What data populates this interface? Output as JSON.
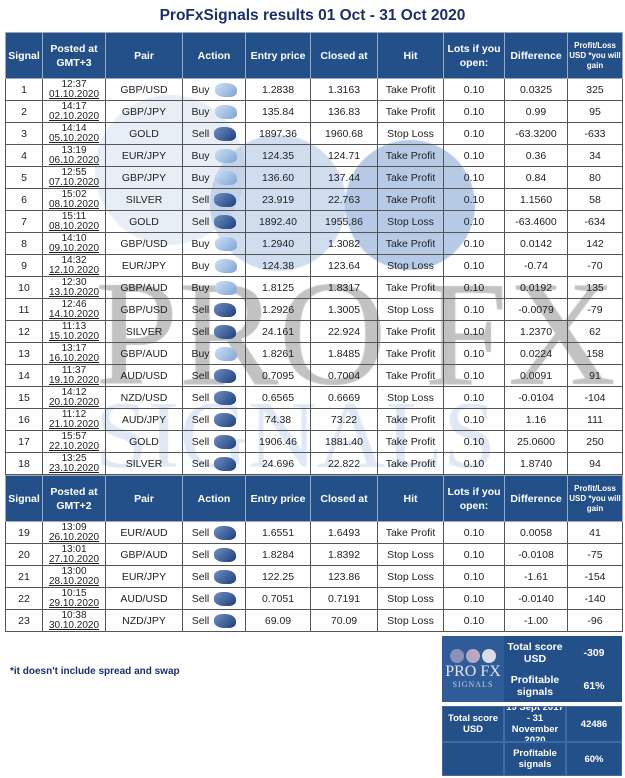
{
  "title": "ProFxSignals results 01 Oct - 31 Oct 2020",
  "headers1": [
    "Signal",
    "Posted at GMT+3",
    "Pair",
    "Action",
    "Entry price",
    "Closed at",
    "Hit",
    "Lots if you open:",
    "Difference",
    "Profit/Loss USD *you will gain"
  ],
  "headers2": [
    "Signal",
    "Posted at GMT+2",
    "Pair",
    "Action",
    "Entry price",
    "Closed at",
    "Hit",
    "Lots if you open:",
    "Difference",
    "Profit/Loss USD *you will gain"
  ],
  "rows1": [
    [
      "1",
      "12:37",
      "01.10.2020",
      "GBP/USD",
      "Buy",
      "1.2838",
      "1.3163",
      "Take Profit",
      "0.10",
      "0.0325",
      "325"
    ],
    [
      "2",
      "14:17",
      "02.10.2020",
      "GBP/JPY",
      "Buy",
      "135.84",
      "136.83",
      "Take Profit",
      "0.10",
      "0.99",
      "95"
    ],
    [
      "3",
      "14:14",
      "05.10.2020",
      "GOLD",
      "Sell",
      "1897.36",
      "1960.68",
      "Stop Loss",
      "0.10",
      "-63.3200",
      "-633"
    ],
    [
      "4",
      "13:19",
      "06.10.2020",
      "EUR/JPY",
      "Buy",
      "124.35",
      "124.71",
      "Take Profit",
      "0.10",
      "0.36",
      "34"
    ],
    [
      "5",
      "12:55",
      "07.10.2020",
      "GBP/JPY",
      "Buy",
      "136.60",
      "137.44",
      "Take Profit",
      "0.10",
      "0.84",
      "80"
    ],
    [
      "6",
      "15:02",
      "08.10.2020",
      "SILVER",
      "Sell",
      "23.919",
      "22.763",
      "Take Profit",
      "0.10",
      "1.1560",
      "58"
    ],
    [
      "7",
      "15:11",
      "08.10.2020",
      "GOLD",
      "Sell",
      "1892.40",
      "1955.86",
      "Stop Loss",
      "0.10",
      "-63.4600",
      "-634"
    ],
    [
      "8",
      "14:10",
      "09.10.2020",
      "GBP/USD",
      "Buy",
      "1.2940",
      "1.3082",
      "Take Profit",
      "0.10",
      "0.0142",
      "142"
    ],
    [
      "9",
      "14:32",
      "12.10.2020",
      "EUR/JPY",
      "Buy",
      "124.38",
      "123.64",
      "Stop Loss",
      "0.10",
      "-0.74",
      "-70"
    ],
    [
      "10",
      "12:30",
      "13.10.2020",
      "GBP/AUD",
      "Buy",
      "1.8125",
      "1.8317",
      "Take Profit",
      "0.10",
      "0.0192",
      "135"
    ],
    [
      "11",
      "12:46",
      "14.10.2020",
      "GBP/USD",
      "Sell",
      "1.2926",
      "1.3005",
      "Stop Loss",
      "0.10",
      "-0.0079",
      "-79"
    ],
    [
      "12",
      "11:13",
      "15.10.2020",
      "SILVER",
      "Sell",
      "24.161",
      "22.924",
      "Take Profit",
      "0.10",
      "1.2370",
      "62"
    ],
    [
      "13",
      "13:17",
      "16.10.2020",
      "GBP/AUD",
      "Buy",
      "1.8261",
      "1.8485",
      "Take Profit",
      "0.10",
      "0.0224",
      "158"
    ],
    [
      "14",
      "11:37",
      "19.10.2020",
      "AUD/USD",
      "Sell",
      "0.7095",
      "0.7004",
      "Take Profit",
      "0.10",
      "0.0091",
      "91"
    ],
    [
      "15",
      "14:12",
      "20.10.2020",
      "NZD/USD",
      "Sell",
      "0.6565",
      "0.6669",
      "Stop Loss",
      "0.10",
      "-0.0104",
      "-104"
    ],
    [
      "16",
      "11:12",
      "21.10.2020",
      "AUD/JPY",
      "Sell",
      "74.38",
      "73.22",
      "Take Profit",
      "0.10",
      "1.16",
      "111"
    ],
    [
      "17",
      "15:57",
      "22.10.2020",
      "GOLD",
      "Sell",
      "1906.46",
      "1881.40",
      "Take Profit",
      "0.10",
      "25.0600",
      "250"
    ],
    [
      "18",
      "13:25",
      "23.10.2020",
      "SILVER",
      "Sell",
      "24.696",
      "22.822",
      "Take Profit",
      "0.10",
      "1.8740",
      "94"
    ]
  ],
  "rows2": [
    [
      "19",
      "13:09",
      "26.10.2020",
      "EUR/AUD",
      "Sell",
      "1.6551",
      "1.6493",
      "Take Profit",
      "0.10",
      "0.0058",
      "41"
    ],
    [
      "20",
      "13:01",
      "27.10.2020",
      "GBP/AUD",
      "Sell",
      "1.8284",
      "1.8392",
      "Stop Loss",
      "0.10",
      "-0.0108",
      "-75"
    ],
    [
      "21",
      "13:00",
      "28.10.2020",
      "EUR/JPY",
      "Sell",
      "122.25",
      "123.86",
      "Stop Loss",
      "0.10",
      "-1.61",
      "-154"
    ],
    [
      "22",
      "10:15",
      "29.10.2020",
      "AUD/USD",
      "Sell",
      "0.7051",
      "0.7191",
      "Stop Loss",
      "0.10",
      "-0.0140",
      "-140"
    ],
    [
      "23",
      "10:38",
      "30.10.2020",
      "NZD/JPY",
      "Sell",
      "69.09",
      "70.09",
      "Stop Loss",
      "0.10",
      "-1.00",
      "-96"
    ]
  ],
  "note": "*it doesn't include spread and swap",
  "summary": {
    "logo_text": "PRO FX",
    "logo_sub": "SIGNALS",
    "total_label": "Total score USD",
    "total_value": "-309",
    "profitable_label": "Profitable signals",
    "profitable_value": "61%"
  },
  "alltime": {
    "total_label": "Total score USD",
    "period": "19 Sept 2017 - 31 November 2020",
    "total_value": "42486",
    "profitable_label": "Profitable signals",
    "profitable_value": "60%"
  },
  "watermark": {
    "text": "PRO FX",
    "sub": "SIGNALS"
  },
  "colors": {
    "header": "#24508a",
    "title": "#1c2f6b"
  }
}
